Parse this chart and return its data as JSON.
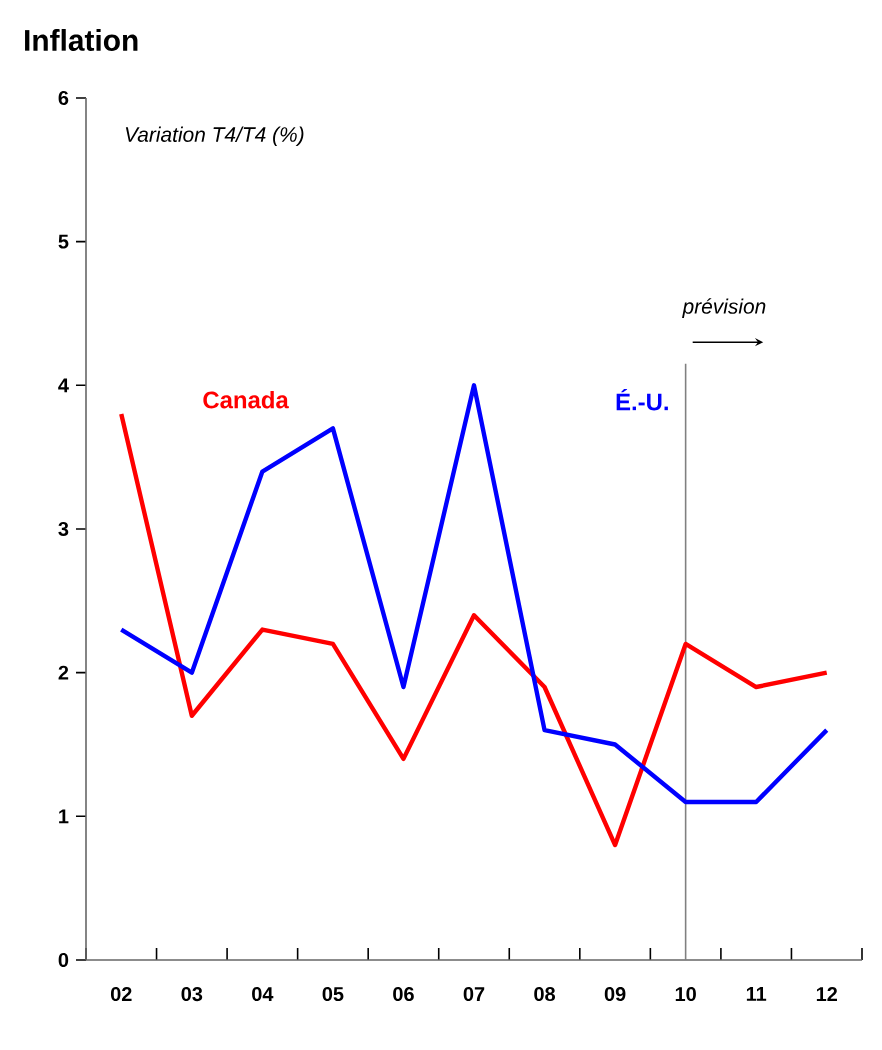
{
  "chart_data": {
    "type": "line",
    "title": "Inflation",
    "ylabel": "Variation T4/T4 (%)",
    "categories": [
      "02",
      "03",
      "04",
      "05",
      "06",
      "07",
      "08",
      "09",
      "10",
      "11",
      "12"
    ],
    "series": [
      {
        "name": "Canada",
        "color": "#ff0000",
        "values": [
          3.8,
          1.7,
          2.3,
          2.2,
          1.4,
          2.4,
          1.9,
          0.8,
          2.2,
          1.9,
          2.0
        ]
      },
      {
        "name": "É.-U.",
        "color": "#0000ff",
        "values": [
          2.3,
          2.0,
          3.4,
          3.7,
          1.9,
          4.0,
          1.6,
          1.5,
          1.1,
          1.1,
          1.6
        ]
      }
    ],
    "ylim": [
      0,
      6
    ],
    "yticks": [
      0,
      1,
      2,
      3,
      4,
      5,
      6
    ],
    "ref_lines": [
      {
        "axis": "x",
        "value": "10",
        "label": "prévision",
        "color": "#808080"
      }
    ],
    "grid": false,
    "marker": "none",
    "line_style": "solid"
  }
}
